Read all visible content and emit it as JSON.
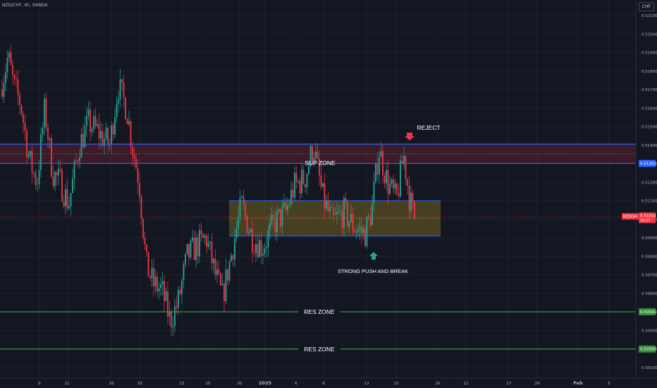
{
  "header": {
    "symbol_text": "NZD/CHF, 4h, OANDA"
  },
  "price_scale": {
    "currency": "CHF"
  },
  "colors": {
    "background": "#131722",
    "up": "#26a69a",
    "down": "#f23645",
    "grid": "#1e222d",
    "text": "#b2b5be",
    "blue_line": "#2962ff",
    "green_line": "#4caf50",
    "supply_fill": "#5c1f2a",
    "demand_fill": "#6b5a22"
  },
  "chart_data": {
    "type": "candlestick",
    "y_ticks": [
      "0.52100",
      "0.52000",
      "0.51900",
      "0.51800",
      "0.51700",
      "0.51600",
      "0.51500",
      "0.51400",
      "0.51300",
      "0.51200",
      "0.51100",
      "0.51000",
      "0.50900",
      "0.50800",
      "0.50700",
      "0.50600",
      "0.50500",
      "0.50400",
      "0.50300",
      "0.50200"
    ],
    "ylim": [
      0.5018,
      0.5214
    ],
    "x_ticks": [
      "9",
      "11",
      "16",
      "18",
      "23",
      "25",
      "30",
      "2025",
      "6",
      "8",
      "13",
      "15",
      "20",
      "22",
      "27",
      "29",
      "Feb",
      "5"
    ],
    "annotations": {
      "reject": "REJECT",
      "sup_zone": "SUP ZONE",
      "strong_push": "STRONG PUSH AND BREAK",
      "res_zone_1": "RES ZONE",
      "res_zone_2": "RES ZONE"
    },
    "levels": [
      {
        "name": "supply_top",
        "price": 0.51406
      },
      {
        "name": "supply_bottom",
        "price": 0.51302,
        "label": "0.51302"
      },
      {
        "name": "res_1",
        "price": 0.50501,
        "label": "0.50501"
      },
      {
        "name": "res_2",
        "price": 0.503,
        "label": "0.50300"
      }
    ],
    "current_price": {
      "symbol": "NZDCHF",
      "price": "0.51014",
      "countdown": "24:27"
    },
    "zones": [
      {
        "name": "supply",
        "top": 0.51406,
        "bottom": 0.51302
      },
      {
        "name": "demand",
        "top": 0.511,
        "bottom": 0.5091
      }
    ],
    "seed": 7
  }
}
